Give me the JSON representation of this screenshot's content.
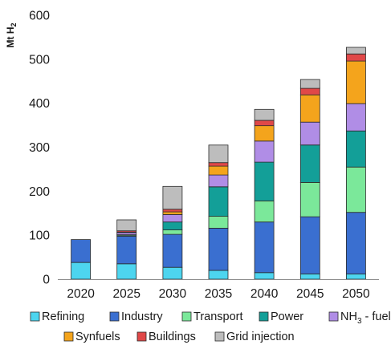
{
  "chart_data": {
    "type": "bar",
    "stacked": true,
    "title": "",
    "xlabel": "",
    "ylabel": "Mt H2",
    "ylim": [
      0,
      600
    ],
    "yticks": [
      0,
      100,
      200,
      300,
      400,
      500,
      600
    ],
    "grid": false,
    "legend_position": "bottom",
    "categories": [
      "2020",
      "2025",
      "2030",
      "2035",
      "2040",
      "2045",
      "2050"
    ],
    "series": [
      {
        "name": "Refining",
        "color": "#4dd5ef",
        "values": [
          38,
          35,
          27,
          20,
          15,
          12,
          12
        ]
      },
      {
        "name": "Industry",
        "color": "#3a6fd0",
        "values": [
          52,
          63,
          75,
          96,
          115,
          130,
          140
        ]
      },
      {
        "name": "Transport",
        "color": "#7be89a",
        "values": [
          0,
          2,
          10,
          27,
          48,
          78,
          103
        ]
      },
      {
        "name": "Power",
        "color": "#139f98",
        "values": [
          0,
          1,
          18,
          67,
          88,
          85,
          82
        ]
      },
      {
        "name": "NH3 - fuel",
        "color": "#b08de6",
        "values": [
          0,
          5,
          17,
          27,
          48,
          52,
          62
        ]
      },
      {
        "name": "Synfuels",
        "color": "#f4a41c",
        "values": [
          0,
          1,
          6,
          20,
          35,
          62,
          97
        ]
      },
      {
        "name": "Buildings",
        "color": "#e04848",
        "values": [
          0,
          3,
          6,
          8,
          12,
          15,
          16
        ]
      },
      {
        "name": "Grid injection",
        "color": "#bdbdbd",
        "values": [
          0,
          25,
          52,
          40,
          25,
          20,
          15
        ]
      }
    ]
  },
  "legend": {
    "row1": [
      {
        "label": "Refining",
        "color": "#4dd5ef"
      },
      {
        "label": "Industry",
        "color": "#3a6fd0"
      },
      {
        "label": "Transport",
        "color": "#7be89a"
      },
      {
        "label": "Power",
        "color": "#139f98"
      },
      {
        "label_main": "NH",
        "label_sub": "3",
        "label_rest": " - fuel",
        "color": "#b08de6"
      }
    ],
    "row2": [
      {
        "label": "Synfuels",
        "color": "#f4a41c"
      },
      {
        "label": "Buildings",
        "color": "#e04848"
      },
      {
        "label": "Grid injection",
        "color": "#bdbdbd"
      }
    ]
  },
  "axis": {
    "ylabel_main": "Mt H",
    "ylabel_sub": "2"
  }
}
